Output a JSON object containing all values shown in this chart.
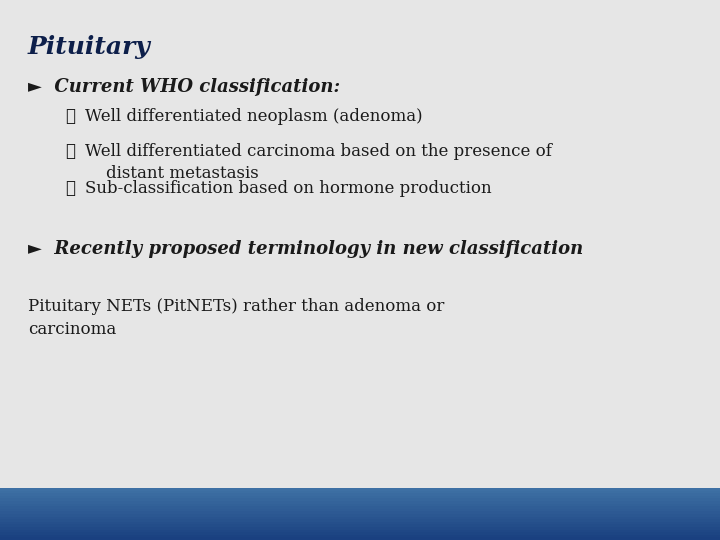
{
  "title": "Pituitary",
  "title_color": "#0d1f4a",
  "bg_color": "#e6e6e6",
  "bar_colors": [
    "#1a4a8a",
    "#2a5fa0",
    "#3a6fb5",
    "#4a7fc5",
    "#3a6fb5"
  ],
  "bullet1": "►  Current WHO classification:",
  "sub_check": "✓",
  "sub_bullets": [
    "Well differentiated neoplasm (adenoma)",
    "Well differentiated carcinoma based on the presence of\n    distant metastasis",
    "Sub-classification based on hormone production"
  ],
  "bullet2": "►  Recently proposed terminology in new classification",
  "body_text": "Pituitary NETs (PitNETs) rather than adenoma or\ncarcinoma",
  "text_color": "#1a1a1a",
  "title_fontsize": 18,
  "bullet1_fontsize": 13,
  "sub_fontsize": 12,
  "bullet2_fontsize": 13,
  "body_fontsize": 12
}
